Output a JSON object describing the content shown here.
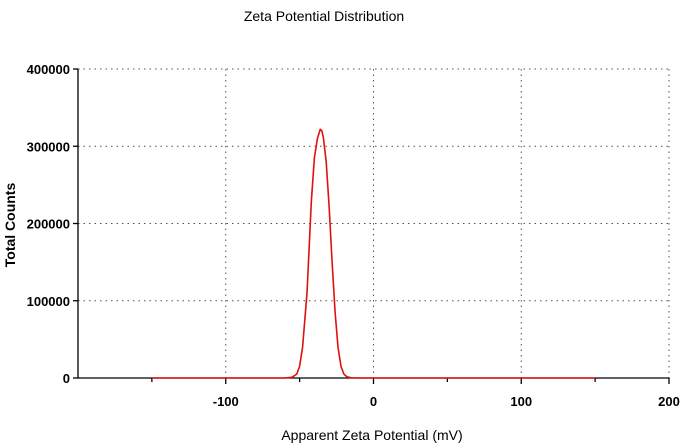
{
  "chart_data": {
    "type": "line",
    "title": "Zeta Potential Distribution",
    "xlabel": "Apparent Zeta Potential (mV)",
    "ylabel": "Total Counts",
    "xlim": [
      -200,
      200
    ],
    "ylim": [
      0,
      400000
    ],
    "x_ticks": [
      -100,
      0,
      100,
      200
    ],
    "y_ticks": [
      0,
      100000,
      200000,
      300000,
      400000
    ],
    "grid": true,
    "series": [
      {
        "color": "#e01010",
        "x": [
          -150,
          -60,
          -55,
          -52,
          -50,
          -48,
          -45,
          -42,
          -40,
          -38,
          -36,
          -35,
          -34,
          -32,
          -30,
          -28,
          -26,
          -24,
          -22,
          -20,
          -18,
          -15,
          -10,
          0,
          50,
          100,
          150
        ],
        "y": [
          0,
          0,
          1000,
          5000,
          15000,
          40000,
          110000,
          230000,
          285000,
          310000,
          322000,
          320000,
          312000,
          280000,
          220000,
          150000,
          85000,
          40000,
          15000,
          5000,
          1500,
          300,
          0,
          0,
          0,
          0,
          0
        ]
      }
    ]
  }
}
